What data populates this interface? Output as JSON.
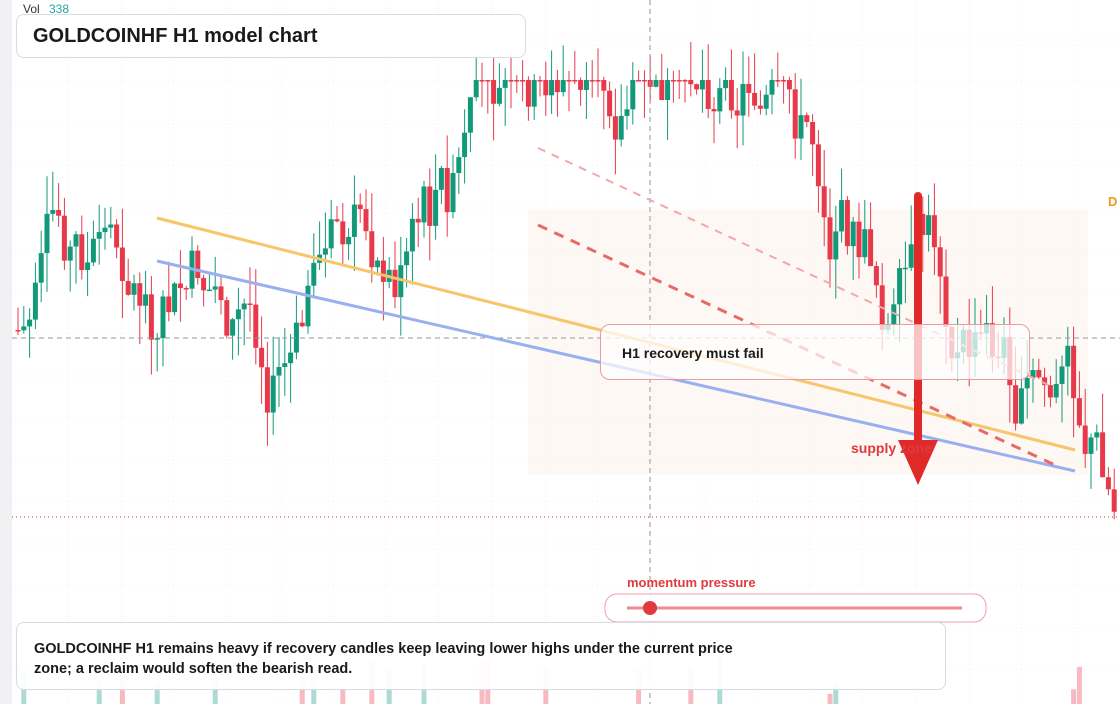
{
  "volume": {
    "label": "Vol",
    "value": "338"
  },
  "header": {
    "title": "GOLDCOINHF H1 model chart"
  },
  "callout": {
    "text": "H1 recovery must fail"
  },
  "zone": {
    "label": "supply zone"
  },
  "edge_tag": {
    "label": "D"
  },
  "slider": {
    "label": "momentum pressure"
  },
  "note": {
    "text": "GOLDCOINHF H1 remains heavy if recovery candles keep leaving lower highs under the current price zone; a reclaim would soften the bearish read."
  }
}
